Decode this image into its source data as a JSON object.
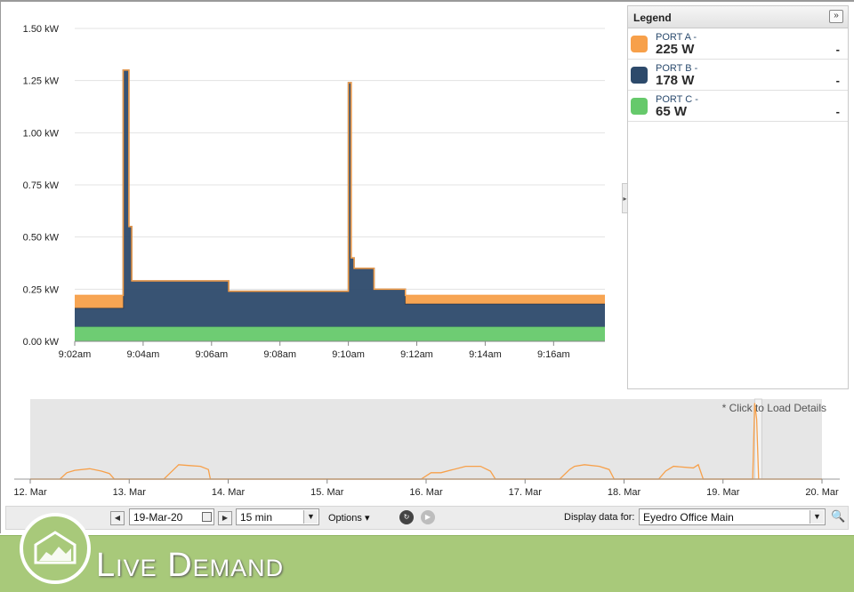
{
  "chart_data": [
    {
      "type": "area",
      "stacking": "stacked",
      "x_unit": "time",
      "x_ticks": [
        "9:02am",
        "9:04am",
        "9:06am",
        "9:08am",
        "9:10am",
        "9:12am",
        "9:14am",
        "9:16am"
      ],
      "xlim": [
        "9:02am",
        "9:17:30am"
      ],
      "y_ticks": [
        "0.00 kW",
        "0.25 kW",
        "0.50 kW",
        "0.75 kW",
        "1.00 kW",
        "1.25 kW",
        "1.50 kW"
      ],
      "ylim": [
        0,
        1.5
      ],
      "y_unit": "kW",
      "grid": true,
      "series": [
        {
          "name": "PORT C",
          "color": "#66c96b",
          "points": [
            [
              "9:02:00",
              0.07
            ],
            [
              "9:17:30",
              0.07
            ]
          ]
        },
        {
          "name": "PORT B",
          "color": "#2d4a6b",
          "points": [
            [
              "9:02:00",
              0.09
            ],
            [
              "9:03:25",
              0.09
            ],
            [
              "9:03:25",
              1.23
            ],
            [
              "9:03:35",
              1.23
            ],
            [
              "9:03:35",
              0.48
            ],
            [
              "9:03:40",
              0.48
            ],
            [
              "9:03:40",
              0.22
            ],
            [
              "9:06:30",
              0.22
            ],
            [
              "9:06:30",
              0.17
            ],
            [
              "9:10:00",
              0.17
            ],
            [
              "9:10:00",
              1.17
            ],
            [
              "9:10:05",
              1.17
            ],
            [
              "9:10:05",
              0.33
            ],
            [
              "9:10:10",
              0.33
            ],
            [
              "9:10:10",
              0.28
            ],
            [
              "9:10:45",
              0.28
            ],
            [
              "9:10:45",
              0.18
            ],
            [
              "9:11:40",
              0.18
            ],
            [
              "9:11:40",
              0.11
            ],
            [
              "9:17:30",
              0.11
            ]
          ]
        },
        {
          "name": "PORT A",
          "color": "#f7a04a",
          "points": [
            [
              "9:02:00",
              0.06
            ],
            [
              "9:03:25",
              0.06
            ],
            [
              "9:03:25",
              0.0
            ],
            [
              "9:11:40",
              0.0
            ],
            [
              "9:11:40",
              0.04
            ],
            [
              "9:17:30",
              0.04
            ]
          ]
        }
      ]
    },
    {
      "type": "line",
      "role": "navigator",
      "x_ticks": [
        "12. Mar",
        "13. Mar",
        "14. Mar",
        "15. Mar",
        "16. Mar",
        "17. Mar",
        "18. Mar",
        "19. Mar",
        "20. Mar"
      ],
      "annotation": "* Click to Load Details",
      "series": [
        {
          "name": "PORT A",
          "color": "#f7a04a",
          "points": [
            [
              12.3,
              0.0
            ],
            [
              12.37,
              0.08
            ],
            [
              12.45,
              0.11
            ],
            [
              12.6,
              0.13
            ],
            [
              12.72,
              0.1
            ],
            [
              12.8,
              0.07
            ],
            [
              12.85,
              0.0
            ],
            [
              13.35,
              0.0
            ],
            [
              13.45,
              0.12
            ],
            [
              13.5,
              0.18
            ],
            [
              13.6,
              0.17
            ],
            [
              13.72,
              0.16
            ],
            [
              13.8,
              0.12
            ],
            [
              13.82,
              0.0
            ],
            [
              15.95,
              0.0
            ],
            [
              16.05,
              0.08
            ],
            [
              16.15,
              0.08
            ],
            [
              16.4,
              0.16
            ],
            [
              16.55,
              0.16
            ],
            [
              16.65,
              0.1
            ],
            [
              16.7,
              0.0
            ],
            [
              17.35,
              0.0
            ],
            [
              17.45,
              0.12
            ],
            [
              17.5,
              0.16
            ],
            [
              17.6,
              0.18
            ],
            [
              17.75,
              0.16
            ],
            [
              17.85,
              0.12
            ],
            [
              17.9,
              0.0
            ],
            [
              18.35,
              0.0
            ],
            [
              18.42,
              0.1
            ],
            [
              18.5,
              0.16
            ],
            [
              18.7,
              0.14
            ],
            [
              18.75,
              0.18
            ],
            [
              18.8,
              0.0
            ],
            [
              19.3,
              0.0
            ],
            [
              19.32,
              0.95
            ],
            [
              19.34,
              0.75
            ],
            [
              19.36,
              0.0
            ]
          ]
        }
      ]
    }
  ],
  "legend": {
    "title": "Legend",
    "toggle_glyph": "»",
    "items": [
      {
        "name": "PORT A -",
        "value": "225 W",
        "dash": "-",
        "color": "#f7a04a"
      },
      {
        "name": "PORT B -",
        "value": "178 W",
        "dash": "-",
        "color": "#2d4a6b"
      },
      {
        "name": "PORT C -",
        "value": "65 W",
        "dash": "-",
        "color": "#66c96b"
      }
    ]
  },
  "toolbar": {
    "prev_glyph": "◀",
    "next_glyph": "▶",
    "date_value": "19-Mar-20",
    "interval_value": "15 min",
    "options_label": "Options ▾",
    "display_label": "Display data for:",
    "meter_value": "Eyedro Office Main",
    "search_glyph": "🔍"
  },
  "banner": {
    "title": "Live Demand"
  }
}
